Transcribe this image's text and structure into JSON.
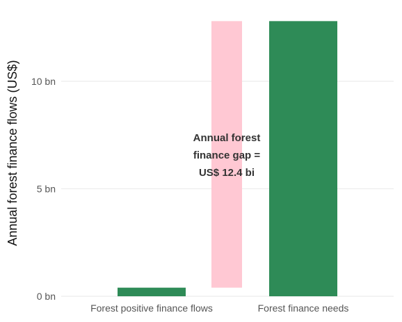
{
  "chart_data": {
    "type": "bar",
    "title": "",
    "xlabel": "",
    "ylabel": "Annual forest finance flows (US$)",
    "categories": [
      "Forest positive finance flows",
      "Forest finance needs"
    ],
    "values": [
      0.4,
      12.8
    ],
    "ylim": [
      0,
      13.2
    ],
    "yticks": [
      {
        "value": 0,
        "label": "0 bn"
      },
      {
        "value": 5,
        "label": "5 bn"
      },
      {
        "value": 10,
        "label": "10 bn"
      }
    ],
    "gap": {
      "from": 0.4,
      "to": 12.8
    },
    "annotation": [
      "Annual forest",
      "finance gap =",
      "US$ 12.4 bi"
    ],
    "grid": true,
    "legend": "none",
    "colors": {
      "bar": "#2e8b57",
      "gap": "#ffc8d3"
    }
  }
}
